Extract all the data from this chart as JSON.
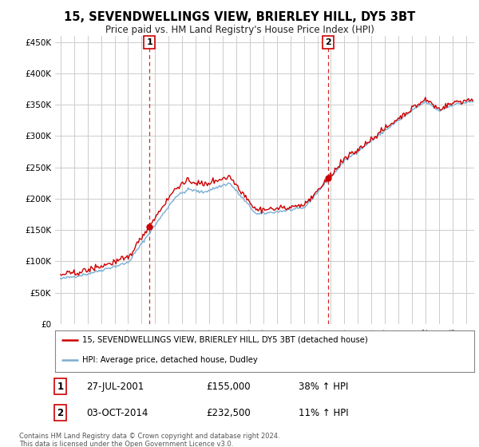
{
  "title": "15, SEVENDWELLINGS VIEW, BRIERLEY HILL, DY5 3BT",
  "subtitle": "Price paid vs. HM Land Registry's House Price Index (HPI)",
  "legend_line1": "15, SEVENDWELLINGS VIEW, BRIERLEY HILL, DY5 3BT (detached house)",
  "legend_line2": "HPI: Average price, detached house, Dudley",
  "annotation1_date": "27-JUL-2001",
  "annotation1_price": "£155,000",
  "annotation1_pct": "38% ↑ HPI",
  "annotation2_date": "03-OCT-2014",
  "annotation2_price": "£232,500",
  "annotation2_pct": "11% ↑ HPI",
  "footer": "Contains HM Land Registry data © Crown copyright and database right 2024.\nThis data is licensed under the Open Government Licence v3.0.",
  "ylim": [
    0,
    460000
  ],
  "yticks": [
    0,
    50000,
    100000,
    150000,
    200000,
    250000,
    300000,
    350000,
    400000,
    450000
  ],
  "ytick_labels": [
    "£0",
    "£50K",
    "£100K",
    "£150K",
    "£200K",
    "£250K",
    "£300K",
    "£350K",
    "£400K",
    "£450K"
  ],
  "red_line_color": "#cc0000",
  "blue_line_color": "#7aadd4",
  "vline_color": "#cc0000",
  "background_color": "#ffffff",
  "grid_color": "#cccccc",
  "sale1_year": 2001.583,
  "sale2_year": 2014.792,
  "price1": 155000,
  "price2": 232500,
  "xlim_start": 1994.6,
  "xlim_end": 2025.6
}
